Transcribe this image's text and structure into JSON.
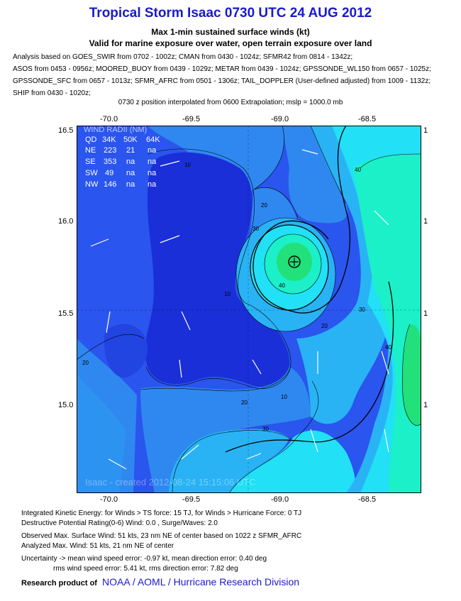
{
  "title": "Tropical Storm Isaac 0730 UTC 24 AUG 2012",
  "subtitle1": "Max 1-min sustained surface winds (kt)",
  "subtitle2": "Valid for marine exposure over water, open terrain exposure over land",
  "analysis_lines": [
    "Analysis based on GOES_SWIR from 0702 - 1002z; CMAN from 0430 - 1024z; SFMR42 from 0814 - 1342z;",
    "ASOS from 0453 - 0956z; MOORED_BUOY from 0439 - 1029z; METAR from 0439 - 1024z; GPSSONDE_WL150 from 0657 - 1025z;",
    "GPSSONDE_SFC from 0657 - 1013z; SFMR_AFRC from 0501 - 1306z; TAIL_DOPPLER (User-defined adjusted) from 1009 - 1132z;",
    "SHIP from 0430 - 1020z;"
  ],
  "position_line": "0730 z position interpolated from 0600 Extrapolation; mslp = 1000.0 mb",
  "axes": {
    "lon_labels": [
      "-70.0",
      "-69.5",
      "-69.0",
      "-68.5"
    ],
    "lat_labels": [
      "16.5",
      "16.0",
      "15.5",
      "15.0"
    ],
    "right_labels": [
      "1",
      "1",
      "1",
      "1"
    ]
  },
  "wind_radii": {
    "header": "WIND RADII (NM)",
    "columns": [
      "QD",
      "34K",
      "50K",
      "64K"
    ],
    "rows": [
      [
        "NE",
        "223",
        "21",
        "na"
      ],
      [
        "SE",
        "353",
        "na",
        "na"
      ],
      [
        "SW",
        "49",
        "na",
        "na"
      ],
      [
        "NW",
        "146",
        "na",
        "na"
      ]
    ]
  },
  "contour_labels": [
    "10",
    "20",
    "20",
    "20",
    "20",
    "30",
    "30",
    "30",
    "40",
    "40",
    "40",
    "10",
    "10"
  ],
  "watermark": "Isaac - created 2012-08-24 15:15:06 UTC",
  "footer": {
    "ike": "Integrated Kinetic Energy: for Winds > TS force: 15 TJ, for Winds > Hurricane Force: 0 TJ",
    "dpr": "Destructive Potential Rating(0-6)  Wind: 0.0 , Surge/Waves: 2.0",
    "obs": "Observed Max. Surface Wind: 51 kts, 23 nm NE of center based on 1022 z SFMR_AFRC",
    "analyzed": "Analyzed Max. Wind: 51 kts, 21 nm  NE of center",
    "unc1": "Uncertainty -> mean wind speed error:  -0.97 kt, mean direction error: 0.40 deg",
    "unc2": "rms wind speed error: 5.41 kt, rms direction error: 7.82 deg",
    "research": "Research product of",
    "org": "NOAA  /  AOML  /  Hurricane Research Division"
  },
  "colors": {
    "deep_blue": "#1a2fd8",
    "blue": "#2a55ee",
    "mid_blue": "#2f88f0",
    "light_blue": "#29b3f5",
    "cyan": "#22e0f5",
    "aqua_green": "#1cf0c8",
    "green": "#22e07a",
    "title_blue": "#1a1acc"
  }
}
